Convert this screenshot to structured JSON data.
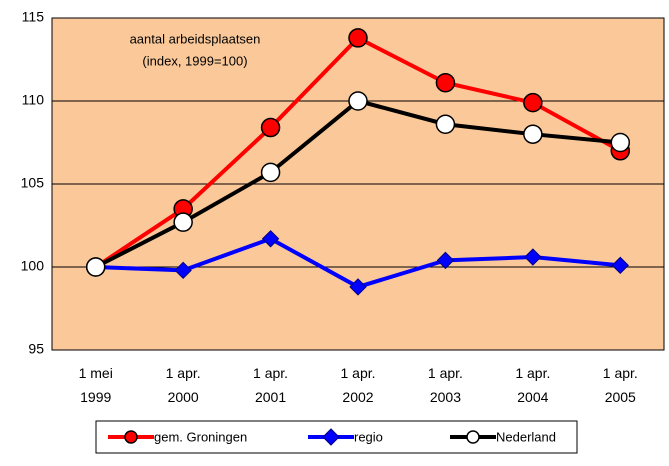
{
  "chart_data": {
    "type": "line",
    "annotation": [
      "aantal arbeidsplaatsen",
      "(index, 1999=100)"
    ],
    "categories": [
      "1 mei 1999",
      "1 apr. 2000",
      "1 apr. 2001",
      "1 apr. 2002",
      "1 apr. 2003",
      "1 apr. 2004",
      "1 apr. 2005"
    ],
    "series": [
      {
        "name": "gem. Groningen",
        "color": "#ff0000",
        "marker": "circle",
        "values": [
          100,
          103.5,
          108.4,
          113.8,
          111.1,
          109.9,
          107.0
        ]
      },
      {
        "name": "regio",
        "color": "#0000ff",
        "marker": "diamond",
        "values": [
          100,
          99.8,
          101.7,
          98.8,
          100.4,
          100.6,
          100.1
        ]
      },
      {
        "name": "Nederland",
        "color": "#000000",
        "marker": "circle-open",
        "values": [
          100,
          102.7,
          105.7,
          110.0,
          108.6,
          108.0,
          107.5
        ]
      }
    ],
    "ylim": [
      95,
      115
    ],
    "yticks": [
      95,
      100,
      105,
      110,
      115
    ],
    "grid": true,
    "plot_background": "#fbc999",
    "legend": "bottom"
  }
}
